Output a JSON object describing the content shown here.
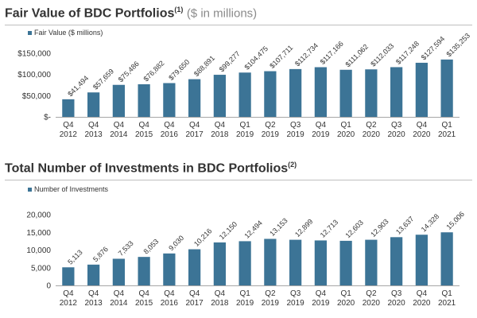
{
  "colors": {
    "bar": "#3c7496",
    "axis": "#a6a6a6",
    "title": "#333333",
    "subtitle": "#8a8a8a",
    "rule": "#bfbfbf"
  },
  "chart_data": [
    {
      "type": "bar",
      "title": "Fair Value of BDC Portfolios",
      "title_sup": "(1)",
      "subtitle": "($ in millions)",
      "legend": "Fair Value ($ millions)",
      "legend_position": "top-left",
      "categories": [
        [
          "Q4",
          "2012"
        ],
        [
          "Q4",
          "2013"
        ],
        [
          "Q4",
          "2014"
        ],
        [
          "Q4",
          "2015"
        ],
        [
          "Q4",
          "2016"
        ],
        [
          "Q4",
          "2017"
        ],
        [
          "Q4",
          "2018"
        ],
        [
          "Q1",
          "2019"
        ],
        [
          "Q2",
          "2019"
        ],
        [
          "Q3",
          "2019"
        ],
        [
          "Q4",
          "2019"
        ],
        [
          "Q1",
          "2020"
        ],
        [
          "Q2",
          "2020"
        ],
        [
          "Q3",
          "2020"
        ],
        [
          "Q4",
          "2020"
        ],
        [
          "Q1",
          "2021"
        ]
      ],
      "values": [
        41494,
        57659,
        75486,
        76882,
        79650,
        88891,
        99277,
        104475,
        107711,
        112734,
        117166,
        111062,
        112033,
        117248,
        127594,
        135253
      ],
      "data_labels": [
        "$41,494",
        "$57,659",
        "$75,486",
        "$76,882",
        "$79,650",
        "$88,891",
        "$99,277",
        "$104,475",
        "$107,711",
        "$112,734",
        "$117,166",
        "$111,062",
        "$112,033",
        "$117,248",
        "$127,594",
        "$135,253"
      ],
      "yticks": [
        0,
        50000,
        100000,
        150000
      ],
      "ytick_labels": [
        "$-",
        "$50,000",
        "$100,000",
        "$150,000"
      ],
      "ylim": [
        0,
        150000
      ],
      "grid": false
    },
    {
      "type": "bar",
      "title": "Total Number of Investments in BDC Portfolios",
      "title_sup": "(2)",
      "legend": "Number of Investments",
      "legend_position": "top-left",
      "categories": [
        [
          "Q4",
          "2012"
        ],
        [
          "Q4",
          "2013"
        ],
        [
          "Q4",
          "2014"
        ],
        [
          "Q4",
          "2015"
        ],
        [
          "Q4",
          "2016"
        ],
        [
          "Q4",
          "2017"
        ],
        [
          "Q4",
          "2018"
        ],
        [
          "Q1",
          "2019"
        ],
        [
          "Q2",
          "2019"
        ],
        [
          "Q3",
          "2019"
        ],
        [
          "Q4",
          "2019"
        ],
        [
          "Q1",
          "2020"
        ],
        [
          "Q2",
          "2020"
        ],
        [
          "Q3",
          "2020"
        ],
        [
          "Q4",
          "2020"
        ],
        [
          "Q1",
          "2021"
        ]
      ],
      "values": [
        5113,
        5876,
        7533,
        8053,
        9030,
        10216,
        12150,
        12494,
        13153,
        12899,
        12713,
        12603,
        12903,
        13637,
        14328,
        15006
      ],
      "data_labels": [
        "5,113",
        "5,876",
        "7,533",
        "8,053",
        "9,030",
        "10,216",
        "12,150",
        "12,494",
        "13,153",
        "12,899",
        "12,713",
        "12,603",
        "12,903",
        "13,637",
        "14,328",
        "15,006"
      ],
      "yticks": [
        0,
        5000,
        10000,
        15000,
        20000
      ],
      "ytick_labels": [
        "0",
        "5,000",
        "10,000",
        "15,000",
        "20,000"
      ],
      "ylim": [
        0,
        20000
      ],
      "grid": false
    }
  ]
}
